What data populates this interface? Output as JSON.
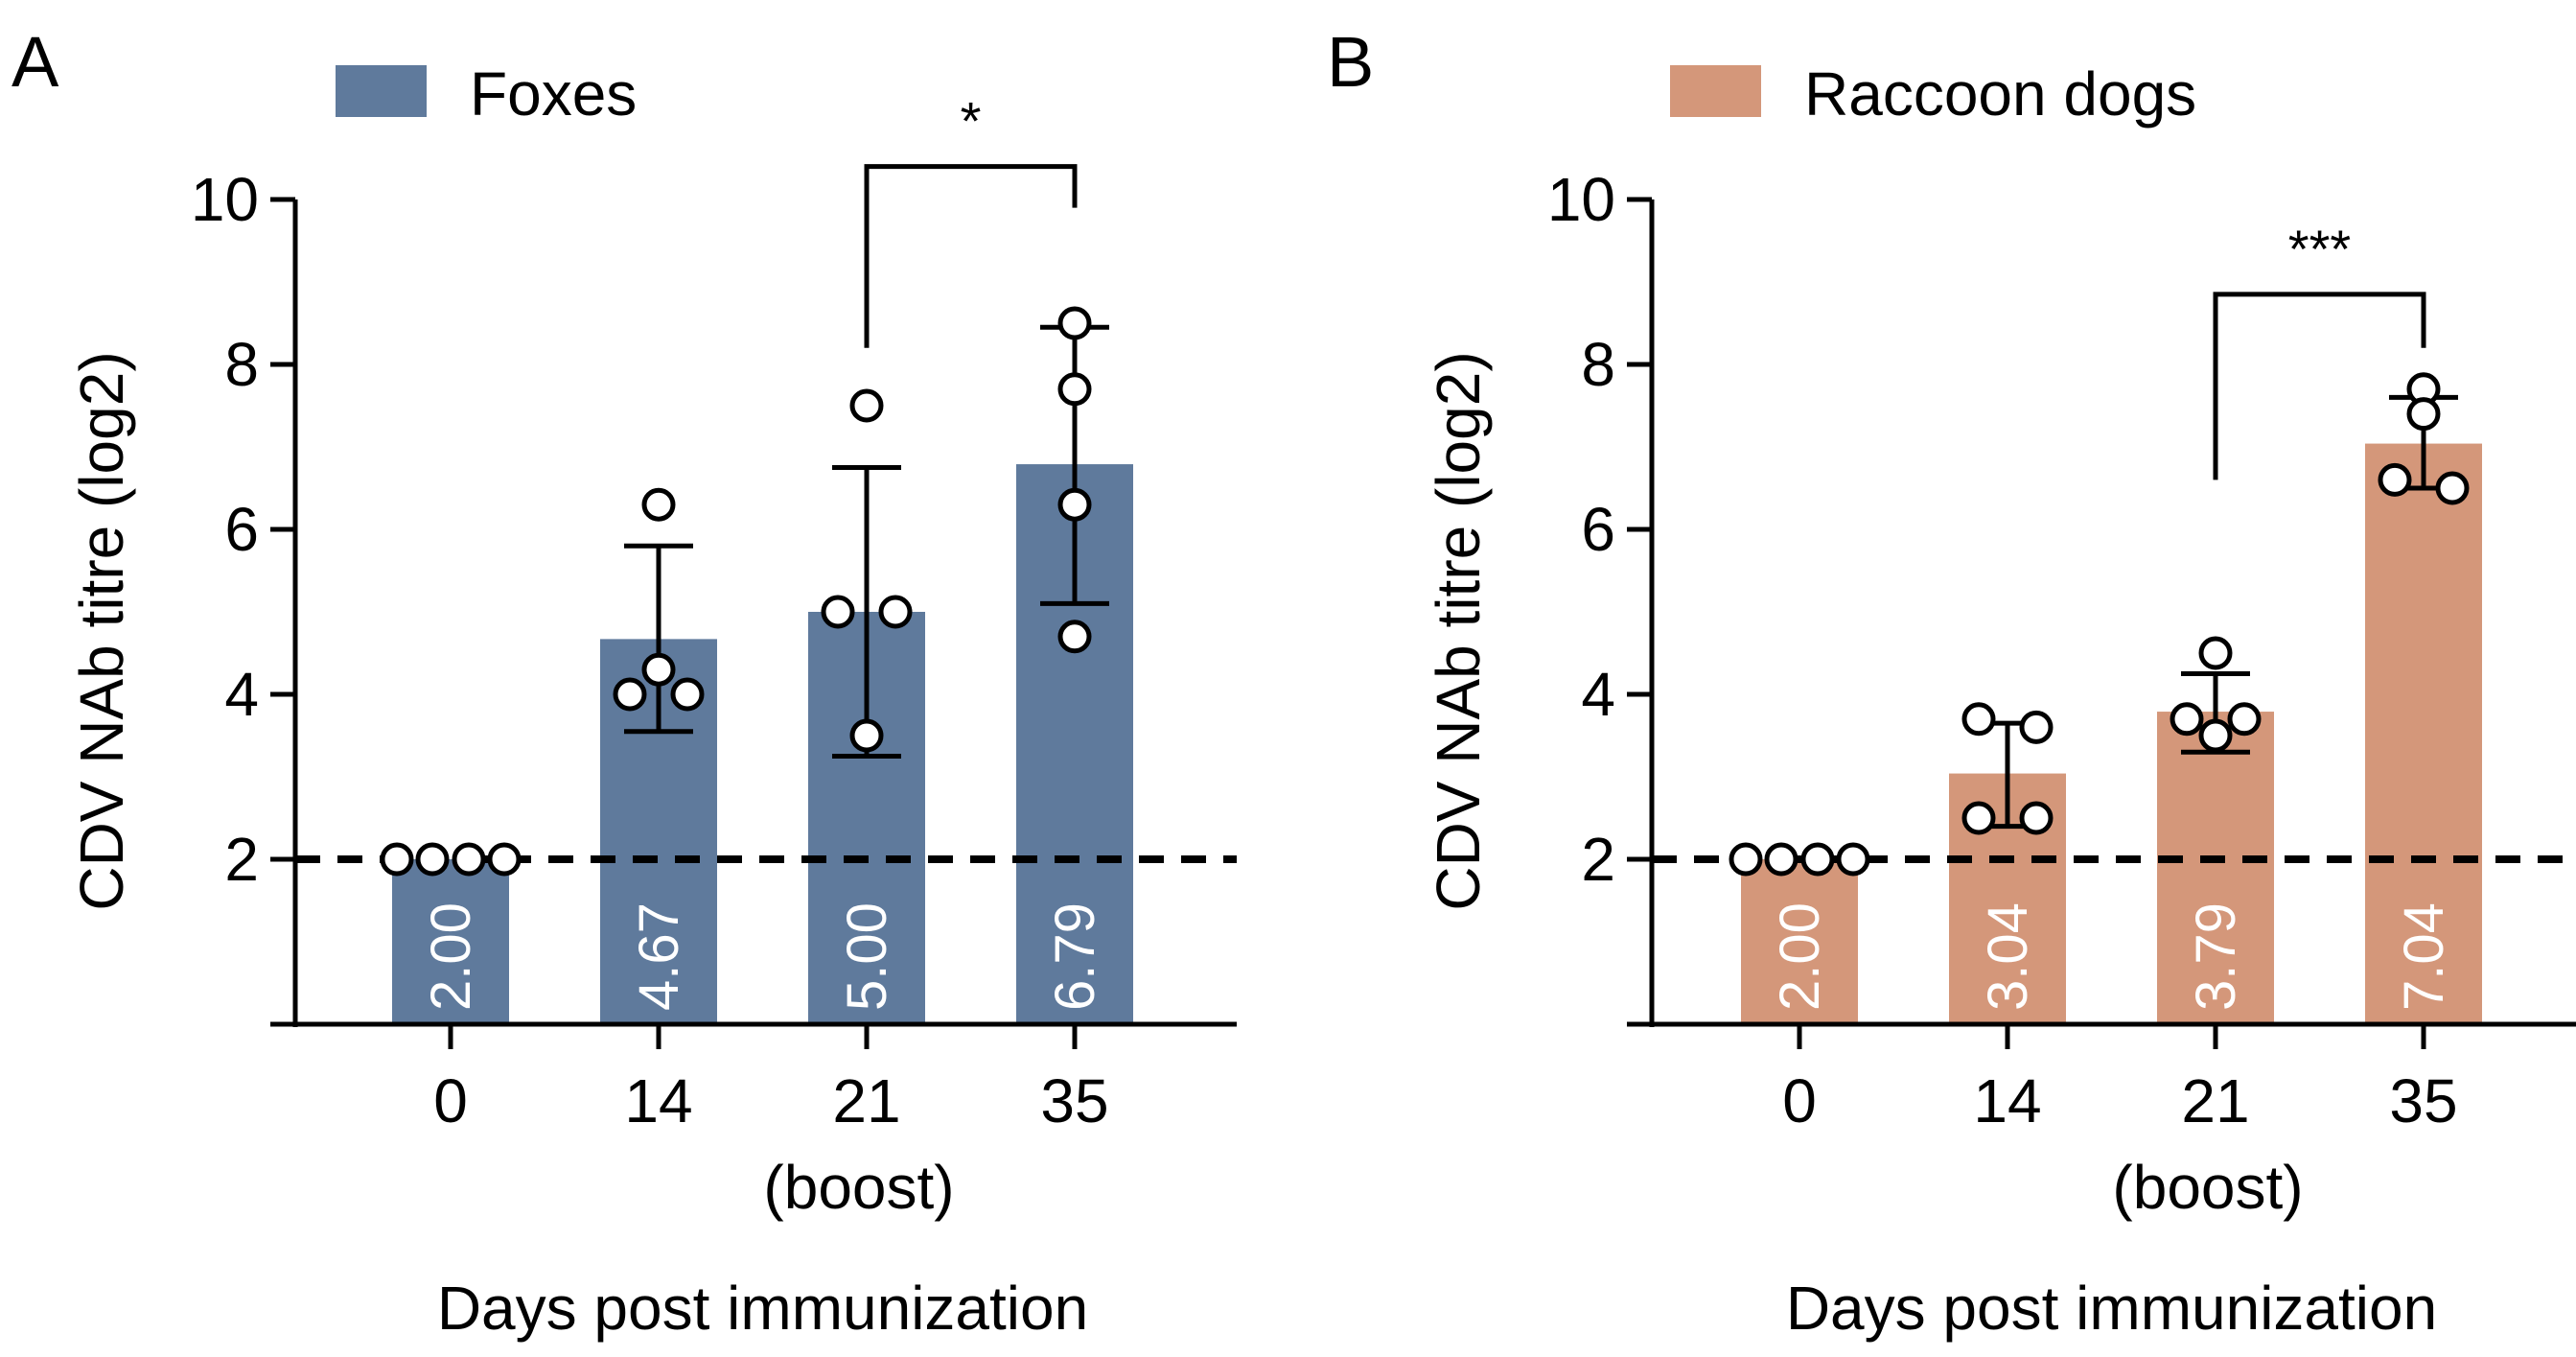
{
  "chart_data": [
    {
      "panel": "A",
      "type": "bar",
      "legend": "Foxes",
      "color": "#5f7a9c",
      "categories": [
        "0",
        "14",
        "21",
        "35"
      ],
      "boost_label": "(boost)",
      "boost_index": 2,
      "values": [
        2.0,
        4.67,
        5.0,
        6.79
      ],
      "value_labels": [
        "2.00",
        "4.67",
        "5.00",
        "6.79"
      ],
      "error_lower": [
        2.0,
        3.55,
        3.25,
        5.1
      ],
      "error_upper": [
        2.0,
        5.8,
        6.75,
        8.45
      ],
      "points": [
        [
          2,
          2,
          2,
          2
        ],
        [
          6.3,
          4.3,
          4.0,
          4.0
        ],
        [
          7.5,
          5.0,
          5.0,
          3.5
        ],
        [
          8.5,
          7.7,
          6.3,
          4.7
        ]
      ],
      "yticks": [
        2,
        4,
        6,
        8,
        10
      ],
      "ylim": [
        0,
        10
      ],
      "threshold": 2,
      "ylabel": "CDV NAb titre (log2)",
      "xlabel": "Days post immunization",
      "significance": {
        "from": 2,
        "to": 3,
        "label": "*",
        "level": 10.4,
        "drop_from": 8.2,
        "drop_to": 9.9
      }
    },
    {
      "panel": "B",
      "type": "bar",
      "legend": "Raccoon dogs",
      "color": "#d4977a",
      "categories": [
        "0",
        "14",
        "21",
        "35"
      ],
      "boost_label": "(boost)",
      "boost_index": 2,
      "values": [
        2.0,
        3.04,
        3.79,
        7.04
      ],
      "value_labels": [
        "2.00",
        "3.04",
        "3.79",
        "7.04"
      ],
      "error_lower": [
        2.0,
        2.4,
        3.3,
        6.5
      ],
      "error_upper": [
        2.0,
        3.65,
        4.25,
        7.6
      ],
      "points": [
        [
          2,
          2,
          2,
          2
        ],
        [
          3.7,
          3.6,
          2.5,
          2.5
        ],
        [
          4.5,
          3.7,
          3.7,
          3.5
        ],
        [
          7.7,
          7.4,
          6.6,
          6.5
        ]
      ],
      "yticks": [
        2,
        4,
        6,
        8,
        10
      ],
      "ylim": [
        0,
        10
      ],
      "threshold": 2,
      "ylabel": "CDV NAb titre (log2)",
      "xlabel": "Days post immunization",
      "significance": {
        "from": 2,
        "to": 3,
        "label": "***",
        "level": 8.85,
        "drop_from": 6.6,
        "drop_to": 8.2
      }
    }
  ]
}
